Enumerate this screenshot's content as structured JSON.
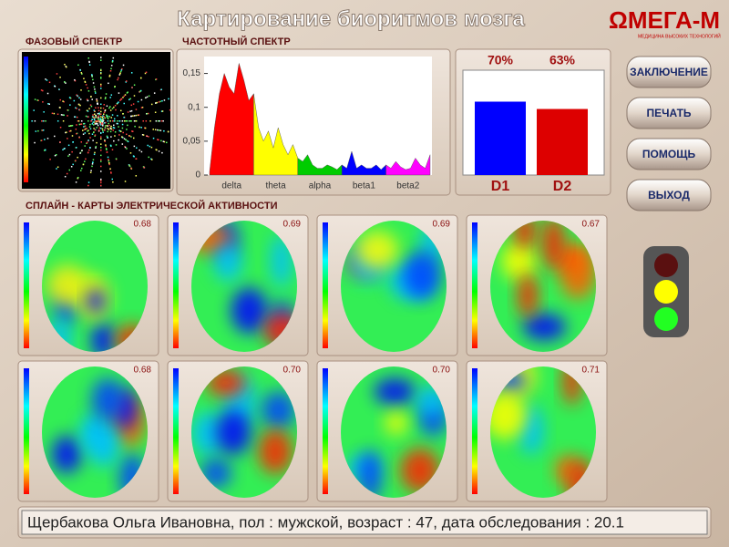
{
  "header": {
    "title": "Картирование биоритмов мозга",
    "logo": "ΩМЕГА-М",
    "logo_subtitle": "МЕДИЦИНА ВЫСОКИХ ТЕХНОЛОГИЙ"
  },
  "phase_spectrum": {
    "title": "ФАЗОВЫЙ СПЕКТР"
  },
  "chart_data": [
    {
      "type": "area",
      "title": "ЧАСТОТНЫЙ СПЕКТР",
      "ylim": [
        0,
        0.175
      ],
      "yticks": [
        0,
        {
          "value": 0.05,
          "label": "0,05"
        },
        {
          "value": 0.1,
          "label": "0,1"
        },
        {
          "value": 0.15,
          "label": "0,15"
        }
      ],
      "series": [
        {
          "name": "delta",
          "color": "#ff0000",
          "values": [
            0.005,
            0.07,
            0.12,
            0.15,
            0.13,
            0.12,
            0.165,
            0.14,
            0.11,
            0.12
          ]
        },
        {
          "name": "theta",
          "color": "#ffff00",
          "values": [
            0.12,
            0.07,
            0.05,
            0.065,
            0.04,
            0.07,
            0.045,
            0.03,
            0.045,
            0.025
          ]
        },
        {
          "name": "alpha",
          "color": "#00cc00",
          "values": [
            0.025,
            0.02,
            0.03,
            0.015,
            0.01,
            0.01,
            0.015,
            0.012,
            0.008,
            0.015
          ]
        },
        {
          "name": "beta1",
          "color": "#0000ff",
          "values": [
            0.015,
            0.01,
            0.035,
            0.01,
            0.015,
            0.01,
            0.01,
            0.015,
            0.008,
            0.015
          ]
        },
        {
          "name": "beta2",
          "color": "#ff00ff",
          "values": [
            0.015,
            0.01,
            0.02,
            0.012,
            0.008,
            0.01,
            0.025,
            0.015,
            0.01,
            0.03
          ]
        }
      ]
    },
    {
      "type": "bar",
      "categories": [
        "D1",
        "D2"
      ],
      "values": [
        70,
        63
      ],
      "value_labels": [
        "70%",
        "63%"
      ],
      "colors": [
        "#0000ff",
        "#dd0000"
      ],
      "ylim": [
        0,
        100
      ]
    }
  ],
  "spline_maps": {
    "title": "СПЛАЙН - КАРТЫ ЭЛЕКТРИЧЕСКОЙ АКТИВНОСТИ",
    "labels": [
      "0.68",
      "0.69",
      "0.69",
      "0.67",
      "0.68",
      "0.70",
      "0.70",
      "0.71"
    ]
  },
  "buttons": [
    "ЗАКЛЮЧЕНИЕ",
    "ПЕЧАТЬ",
    "ПОМОЩЬ",
    "ВЫХОД"
  ],
  "status": "Щербакова Ольга Ивановна, пол : мужской, возраст : 47, дата обследования : 20.1"
}
